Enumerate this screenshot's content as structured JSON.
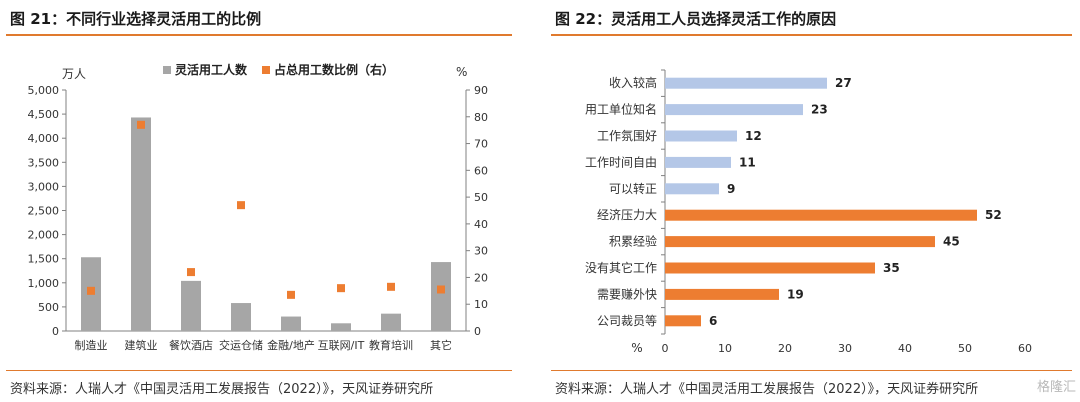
{
  "left_panel": {
    "title": "图 21：不同行业选择灵活用工的比例",
    "source": "资料来源：人瑞人才《中国灵活用工发展报告（2022）》，天风证券研究所"
  },
  "right_panel": {
    "title": "图 22：灵活用工人员选择灵活工作的原因",
    "source": "资料来源：人瑞人才《中国灵活用工发展报告（2022）》，天风证券研究所"
  },
  "watermark": "格隆汇",
  "colors": {
    "gray_bar": "#a6a6a6",
    "orange": "#ed7d31",
    "blue_bar": "#b4c7e7",
    "accent_rule": "#e07a2e"
  },
  "chart_data": [
    {
      "type": "bar",
      "categories": [
        "制造业",
        "建筑业",
        "餐饮酒店",
        "交运仓储",
        "金融/地产",
        "互联网/IT",
        "教育培训",
        "其它"
      ],
      "series": [
        {
          "name": "灵活用工人数",
          "kind": "bar",
          "axis": "left",
          "values": [
            1530,
            4430,
            1040,
            580,
            300,
            160,
            360,
            1430
          ]
        },
        {
          "name": "占总用工数比例（右）",
          "kind": "scatter",
          "axis": "right",
          "values": [
            15,
            77,
            22,
            47,
            13.5,
            16,
            16.5,
            15.5
          ]
        }
      ],
      "ylabel_left": "万人",
      "ylabel_right": "%",
      "ylim_left": [
        0,
        5000
      ],
      "ylim_right": [
        0,
        90
      ],
      "yticks_left": [
        "0",
        "500",
        "1,000",
        "1,500",
        "2,000",
        "2,500",
        "3,000",
        "3,500",
        "4,000",
        "4,500",
        "5,000"
      ],
      "yticks_right": [
        "0",
        "10",
        "20",
        "30",
        "40",
        "50",
        "60",
        "70",
        "80",
        "90"
      ],
      "grid": false,
      "legend": "top"
    },
    {
      "type": "bar",
      "orientation": "horizontal",
      "categories": [
        "收入较高",
        "用工单位知名",
        "工作氛围好",
        "工作时间自由",
        "可以转正",
        "经济压力大",
        "积累经验",
        "没有其它工作",
        "需要赚外快",
        "公司裁员等"
      ],
      "values": [
        27,
        23,
        12,
        11,
        9,
        52,
        45,
        35,
        19,
        6
      ],
      "bar_colors": [
        "blue",
        "blue",
        "blue",
        "blue",
        "blue",
        "orange",
        "orange",
        "orange",
        "orange",
        "orange"
      ],
      "value_labels": [
        "27",
        "23",
        "12",
        "11",
        "9",
        "52",
        "45",
        "35",
        "19",
        "6"
      ],
      "xlabel": "%",
      "xlim": [
        0,
        60
      ],
      "xticks": [
        "0",
        "10",
        "20",
        "30",
        "40",
        "50",
        "60"
      ],
      "grid": false,
      "legend": "none"
    }
  ]
}
